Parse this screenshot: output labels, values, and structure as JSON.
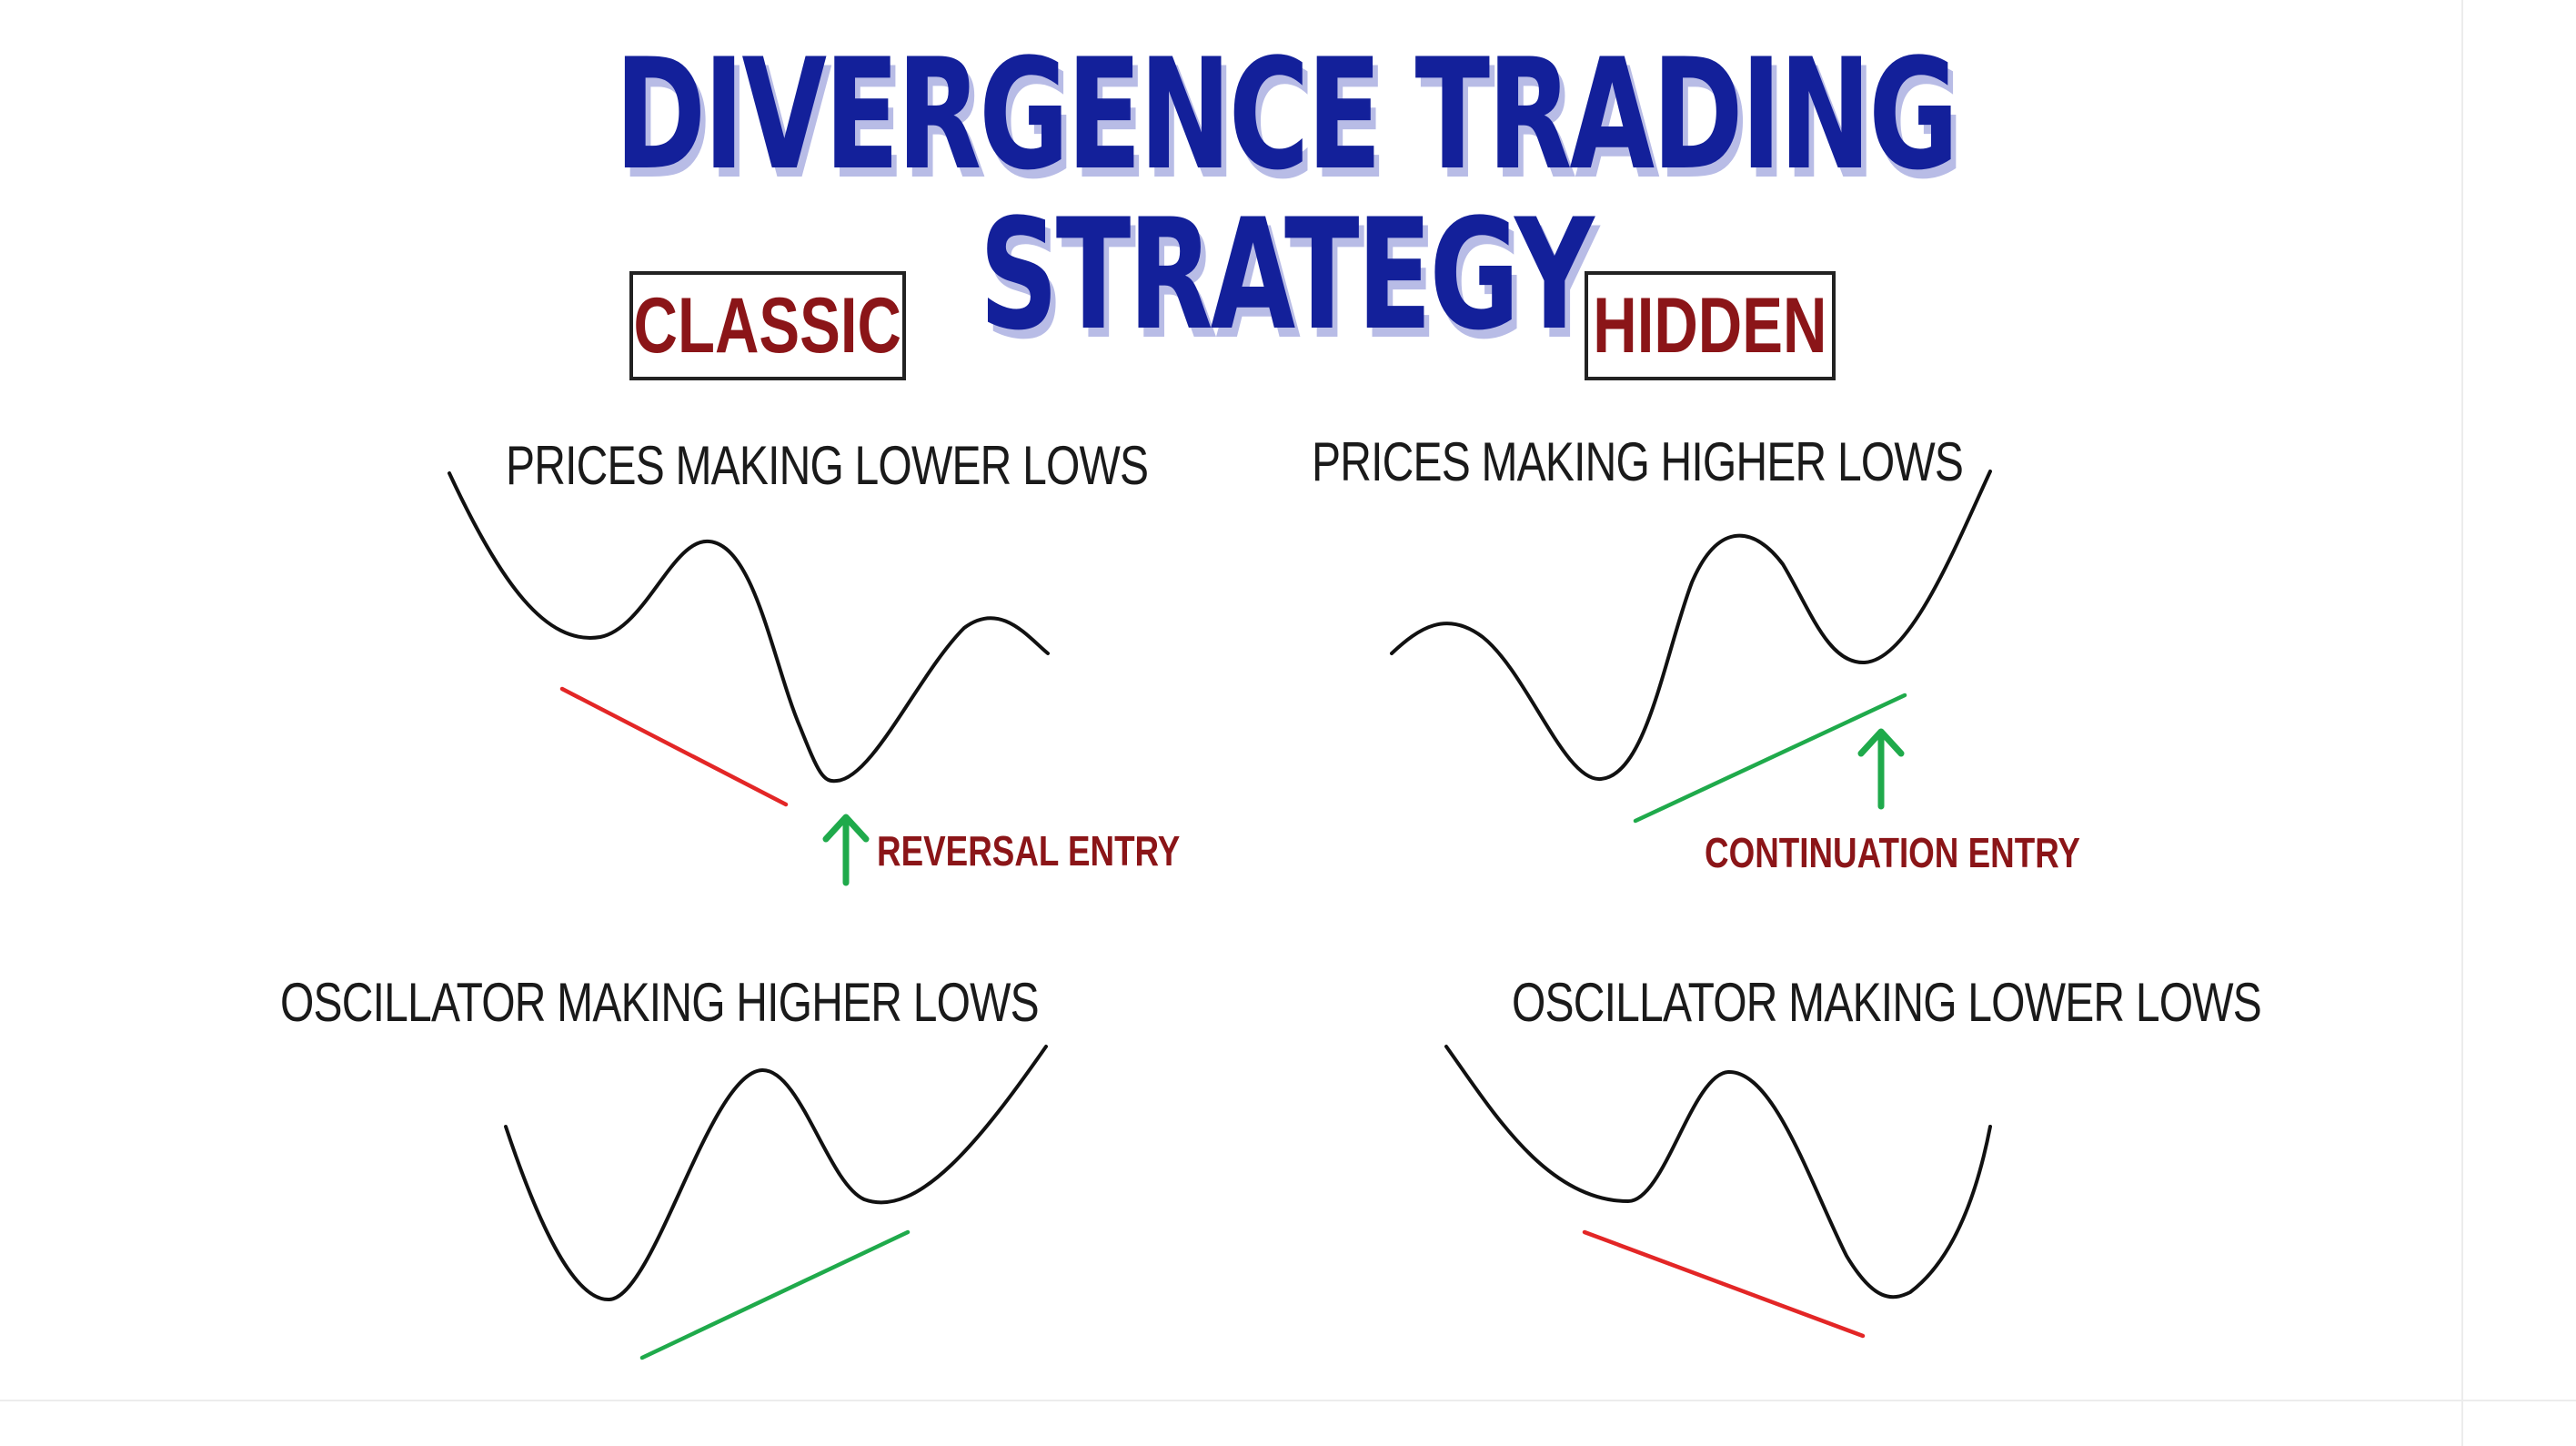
{
  "title": "DIVERGENCE TRADING STRATEGY",
  "colors": {
    "title": "#13209a",
    "title_shadow": "#b8bce6",
    "label_dark_red": "#8b1518",
    "bearish_line": "#e32626",
    "bullish_line": "#1faa4b",
    "curve": "#111111"
  },
  "classic": {
    "label": "CLASSIC",
    "price_heading": "PRICES MAKING LOWER LOWS",
    "entry_label": "REVERSAL ENTRY",
    "oscillator_heading": "OSCILLATOR MAKING HIGHER LOWS"
  },
  "hidden": {
    "label": "HIDDEN",
    "price_heading": "PRICES MAKING HIGHER LOWS",
    "entry_label": "CONTINUATION ENTRY",
    "oscillator_heading": "OSCILLATOR MAKING LOWER LOWS"
  }
}
